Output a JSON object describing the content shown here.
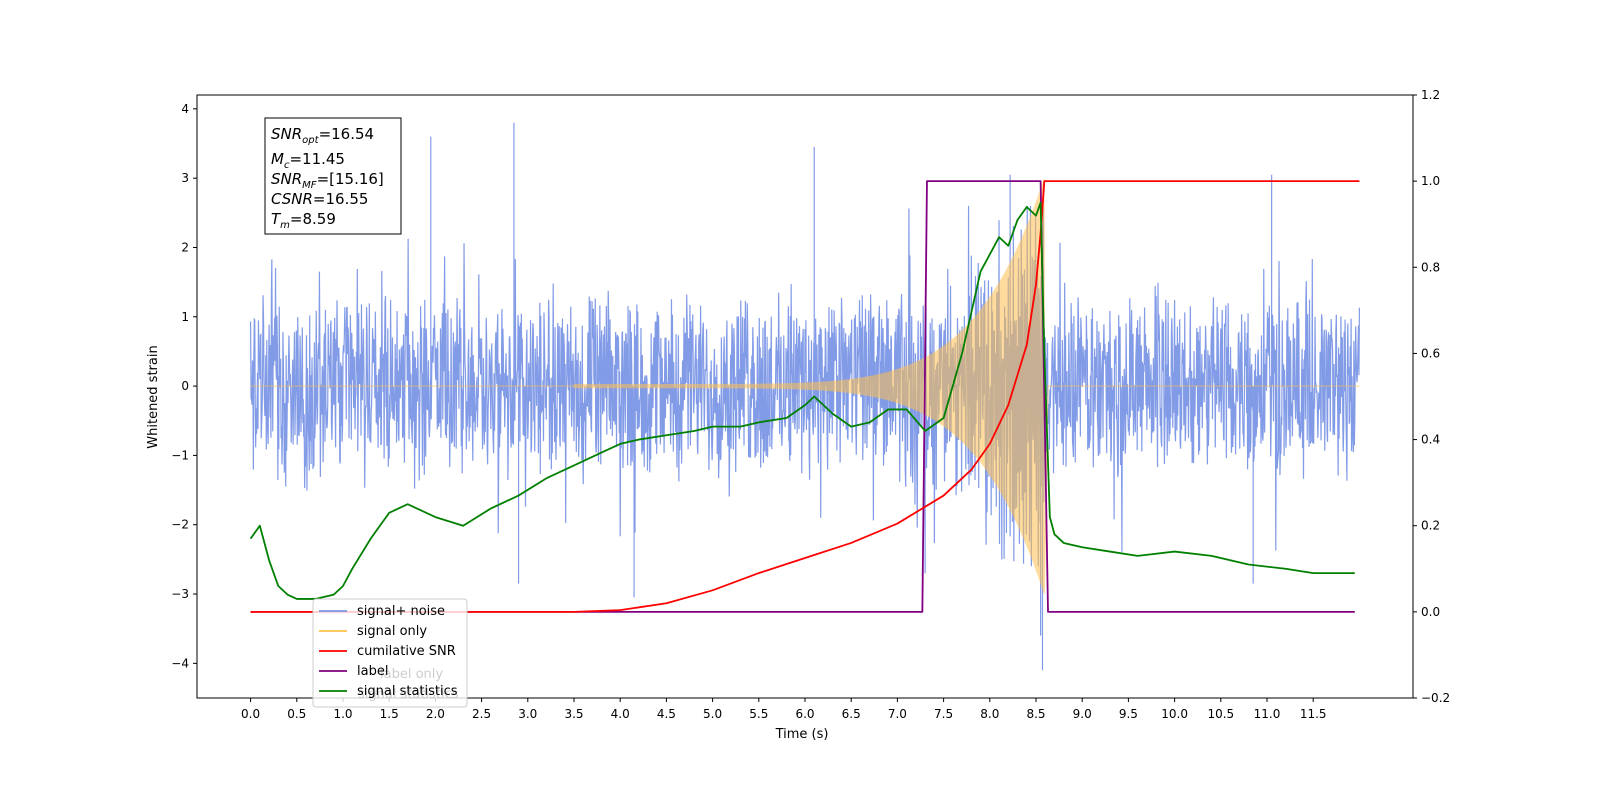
{
  "chart_data": {
    "type": "line",
    "xlabel": "Time (s)",
    "ylabel": "Whitened strain",
    "xlim": [
      -0.58,
      12.58
    ],
    "ylim_left": [
      -4.5,
      4.2
    ],
    "ylim_right": [
      -0.2,
      1.2
    ],
    "x_ticks": [
      "0.0",
      "0.5",
      "1.0",
      "1.5",
      "2.0",
      "2.5",
      "3.0",
      "3.5",
      "4.0",
      "4.5",
      "5.0",
      "5.5",
      "6.0",
      "6.5",
      "7.0",
      "7.5",
      "8.0",
      "8.5",
      "9.0",
      "9.5",
      "10.0",
      "10.5",
      "11.0",
      "11.5"
    ],
    "y_ticks_left": [
      "−4",
      "−3",
      "−2",
      "−1",
      "0",
      "1",
      "2",
      "3",
      "4"
    ],
    "y_ticks_right": [
      "−0.2",
      "0.0",
      "0.2",
      "0.4",
      "0.6",
      "0.8",
      "1.0",
      "1.2"
    ],
    "annotation": {
      "lines": [
        {
          "base": "SNR",
          "sub": "opt",
          "value": "=16.54"
        },
        {
          "base": "M",
          "sub": "c",
          "value": "=11.45"
        },
        {
          "base": "SNR",
          "sub": "MF",
          "value": "=[15.16]"
        },
        {
          "base": "CSNR",
          "sub": "",
          "value": "=16.55"
        },
        {
          "base": "T",
          "sub": "m",
          "value": "=8.59"
        }
      ]
    },
    "legend": {
      "placement": "lower-left",
      "entries": [
        {
          "label": "signal+ noise",
          "color": "#7b96e6"
        },
        {
          "label": "signal only",
          "color": "#ffc04d"
        },
        {
          "label": "cumilative SNR",
          "color": "#ff0000"
        },
        {
          "label": "label",
          "color": "#800080"
        },
        {
          "label": "signal statistics",
          "color": "#008000"
        }
      ],
      "hidden_text": [
        "label only",
        "signal statistics"
      ]
    },
    "series": [
      {
        "name": "signal+ noise",
        "axis": "left",
        "color": "#7b96e6",
        "description": "white noise spanning 0.0–12.0 s, envelope approx ±1.2 with spikes to ±3.8",
        "spikes": [
          [
            2.85,
            3.8
          ],
          [
            6.1,
            3.45
          ],
          [
            1.95,
            3.6
          ],
          [
            11.05,
            3.05
          ],
          [
            8.22,
            3.05
          ],
          [
            8.57,
            -4.1
          ],
          [
            8.55,
            -3.6
          ],
          [
            4.15,
            -3.05
          ],
          [
            2.9,
            -2.85
          ],
          [
            10.85,
            -2.85
          ],
          [
            7.3,
            -2.7
          ]
        ]
      },
      {
        "name": "signal only",
        "axis": "left",
        "color": "#ffc04d",
        "description": "chirp signal growing from 0 at ~3.5 s to amplitude ~3.0 at merger 8.59 s, then flat 0"
      },
      {
        "name": "cumilative SNR",
        "axis": "right",
        "color": "#ff0000",
        "x": [
          0.0,
          3.5,
          4.0,
          4.5,
          5.0,
          5.5,
          6.0,
          6.5,
          7.0,
          7.5,
          7.8,
          8.0,
          8.2,
          8.4,
          8.5,
          8.55,
          8.59,
          12.0
        ],
        "y": [
          0.0,
          0.0,
          0.004,
          0.02,
          0.05,
          0.09,
          0.125,
          0.16,
          0.205,
          0.27,
          0.33,
          0.39,
          0.48,
          0.62,
          0.76,
          0.88,
          1.0,
          1.0
        ]
      },
      {
        "name": "label",
        "axis": "right",
        "color": "#800080",
        "x": [
          0.0,
          7.27,
          7.32,
          8.55,
          8.63,
          11.95
        ],
        "y": [
          0.0,
          0.0,
          1.0,
          1.0,
          0.0,
          0.0
        ]
      },
      {
        "name": "signal statistics",
        "axis": "right",
        "color": "#008000",
        "x": [
          0.0,
          0.1,
          0.2,
          0.3,
          0.4,
          0.5,
          0.7,
          0.9,
          1.0,
          1.1,
          1.3,
          1.5,
          1.7,
          2.0,
          2.3,
          2.6,
          2.9,
          3.2,
          3.5,
          3.8,
          4.0,
          4.2,
          4.5,
          4.8,
          5.0,
          5.3,
          5.5,
          5.8,
          6.0,
          6.1,
          6.3,
          6.5,
          6.7,
          6.9,
          7.1,
          7.3,
          7.5,
          7.7,
          7.9,
          8.1,
          8.2,
          8.3,
          8.4,
          8.5,
          8.55,
          8.59,
          8.65,
          8.7,
          8.8,
          9.0,
          9.3,
          9.6,
          10.0,
          10.4,
          10.8,
          11.2,
          11.5,
          11.95
        ],
        "y": [
          0.17,
          0.2,
          0.12,
          0.06,
          0.04,
          0.03,
          0.03,
          0.04,
          0.06,
          0.1,
          0.17,
          0.23,
          0.25,
          0.22,
          0.2,
          0.24,
          0.27,
          0.31,
          0.34,
          0.37,
          0.39,
          0.4,
          0.41,
          0.42,
          0.43,
          0.43,
          0.44,
          0.45,
          0.48,
          0.5,
          0.46,
          0.43,
          0.44,
          0.47,
          0.47,
          0.42,
          0.45,
          0.6,
          0.79,
          0.87,
          0.85,
          0.91,
          0.94,
          0.92,
          0.95,
          0.6,
          0.22,
          0.18,
          0.16,
          0.15,
          0.14,
          0.13,
          0.14,
          0.13,
          0.11,
          0.1,
          0.09,
          0.09
        ]
      }
    ]
  }
}
